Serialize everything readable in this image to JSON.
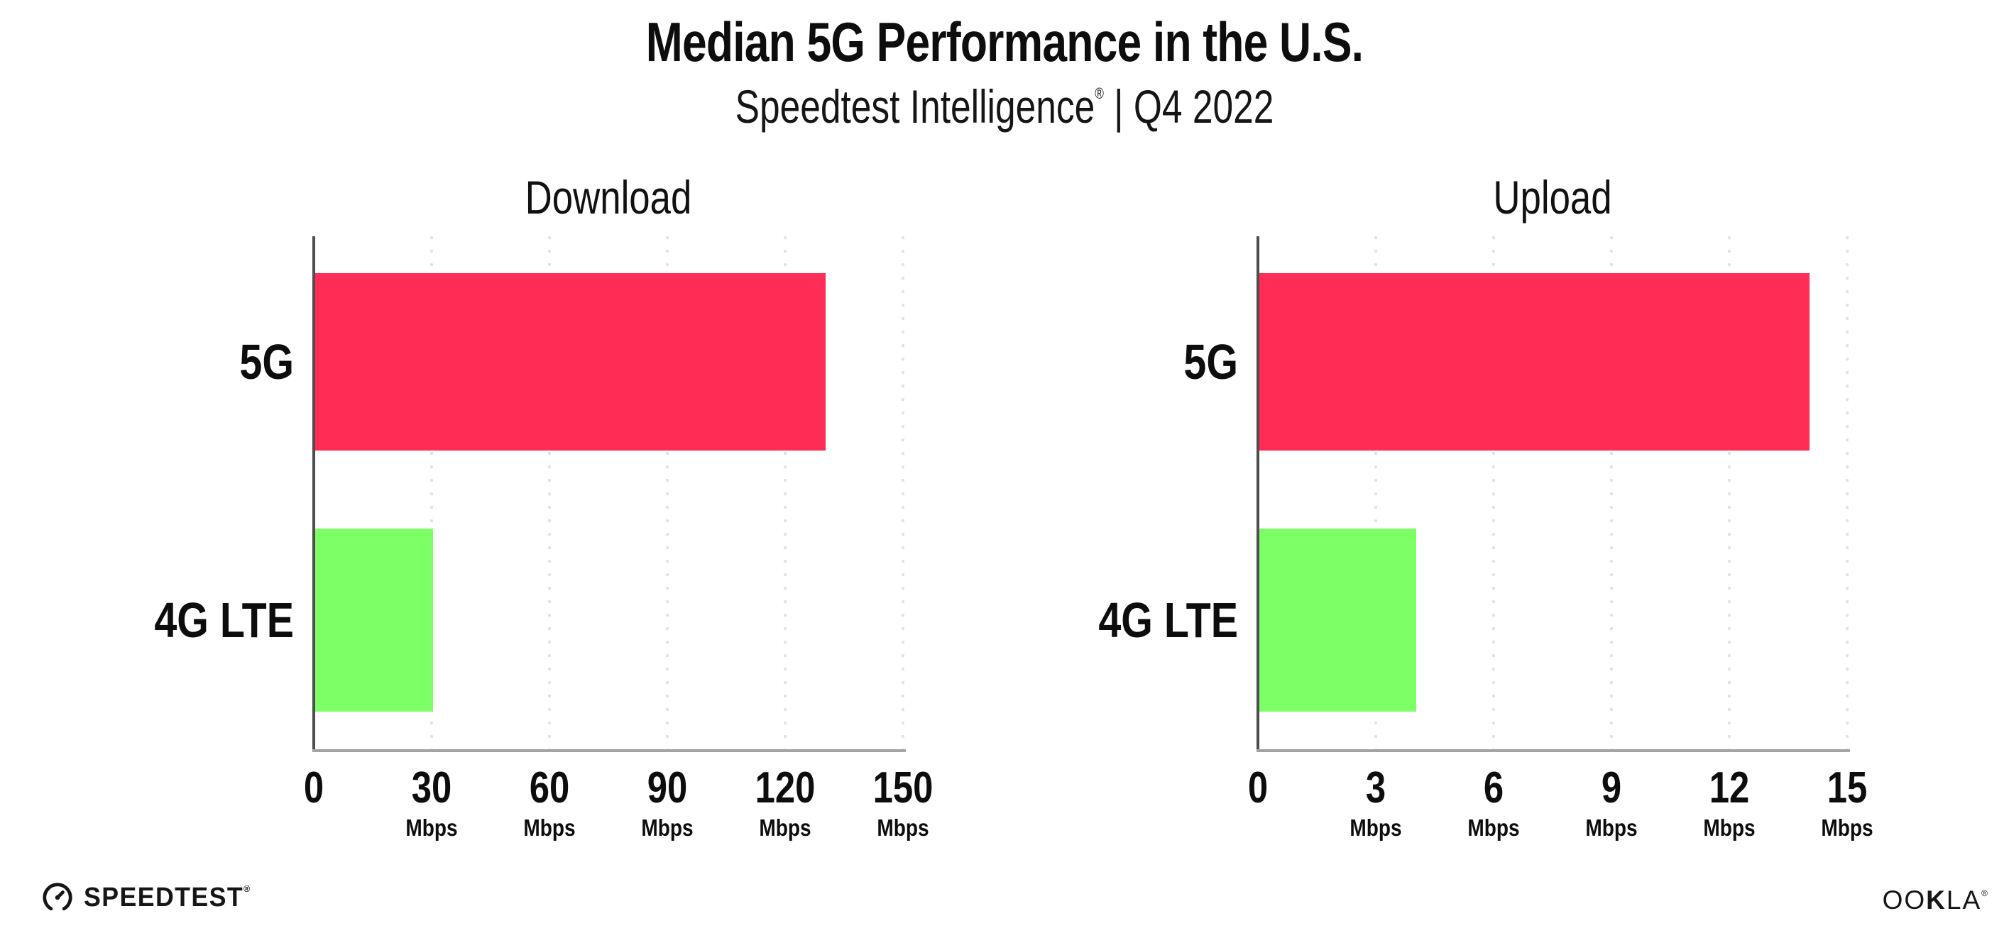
{
  "title": {
    "line1": "Median 5G Performance in the U.S.",
    "line2_brand": "Speedtest Intelligence",
    "line2_reg": "®",
    "line2_rest": " | Q4 2022"
  },
  "colors": {
    "bar_5g": "#ff2d55",
    "bar_4g_lte": "#7dff66",
    "y_axis": "#4d4d4d",
    "x_axis": "#a3a3a3",
    "gridline": "#e1e1ea",
    "text": "#0d0d0d"
  },
  "chart_data": [
    {
      "type": "bar",
      "orientation": "horizontal",
      "title": "Download",
      "categories": [
        "5G",
        "4G LTE"
      ],
      "values": [
        130,
        30
      ],
      "unit": "Mbps",
      "xlim": [
        0,
        150
      ],
      "ticks": [
        0,
        30,
        60,
        90,
        120,
        150
      ],
      "tick_unit_label": "Mbps",
      "bar_colors": [
        "#ff2d55",
        "#7dff66"
      ],
      "grid": "dotted-vertical",
      "legend": "none"
    },
    {
      "type": "bar",
      "orientation": "horizontal",
      "title": "Upload",
      "categories": [
        "5G",
        "4G LTE"
      ],
      "values": [
        14,
        4
      ],
      "unit": "Mbps",
      "xlim": [
        0,
        15
      ],
      "ticks": [
        0,
        3,
        6,
        9,
        12,
        15
      ],
      "tick_unit_label": "Mbps",
      "bar_colors": [
        "#ff2d55",
        "#7dff66"
      ],
      "grid": "dotted-vertical",
      "legend": "none"
    }
  ],
  "footer": {
    "speedtest_label": "SPEEDTEST",
    "speedtest_reg": "®",
    "ookla_pre_k": "OO",
    "ookla_k": "K",
    "ookla_post_k": "LA",
    "ookla_reg": "®"
  }
}
